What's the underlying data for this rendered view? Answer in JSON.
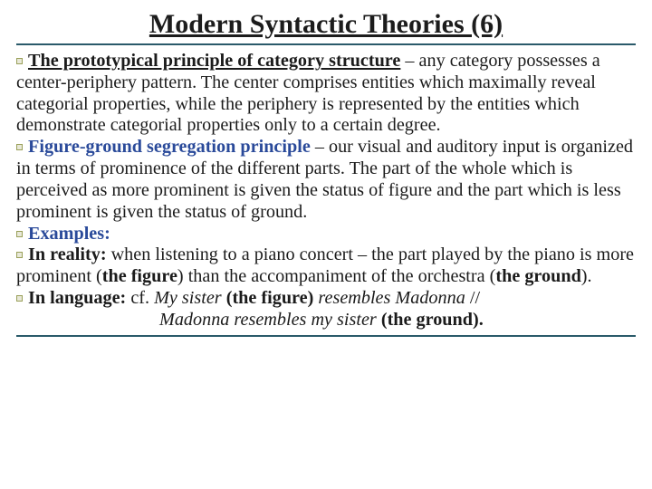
{
  "title": "Modern Syntactic Theories (6)",
  "colors": {
    "rule": "#2a5a6a",
    "blue": "#2a4a9a",
    "text": "#1b1b1b",
    "bg": "#ffffff"
  },
  "fonts": {
    "title_size": 30,
    "body_size": 20.2,
    "line_height": 1.18,
    "family": "Georgia, Times New Roman, serif"
  },
  "p1": {
    "lead": "The prototypical principle of category structure",
    "rest": " – any category possesses a center-periphery pattern. The center comprises entities which maximally reveal categorial properties, while the periphery is represented by the entities which demonstrate categorial properties only to a certain degree."
  },
  "p2": {
    "lead": "Figure-ground segregation principle",
    "rest": " – our visual and auditory input is organized in terms of prominence of the different parts. The part of the whole which is perceived as more prominent is given the status of figure and the part which is less prominent is given the status of ground."
  },
  "ex_label": "Examples:",
  "reality": {
    "lead": "In reality:",
    "t1": " when listening to a piano concert – the part played by the piano is more prominent (",
    "fig": "the figure",
    "t2": ") than the accompaniment of the orchestra (",
    "grd": "the ground",
    "t3": ")."
  },
  "lang": {
    "lead": "In language:",
    "cf": " cf. ",
    "s1": "My sister",
    "mid1": " (the figure) ",
    "s2": "resembles Madonna",
    "sep": " // ",
    "s3": "Madonna resembles my sister",
    "tail": " (the ground)."
  }
}
